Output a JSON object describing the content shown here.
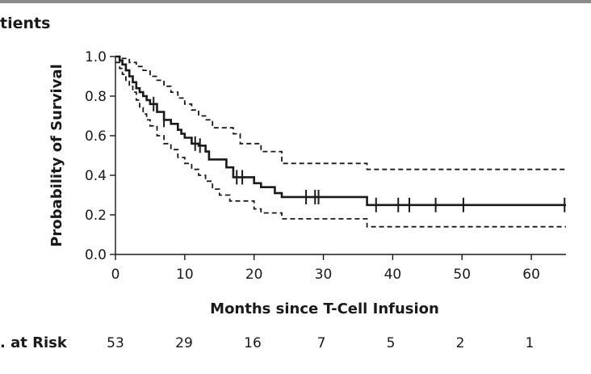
{
  "panel_label": "tients",
  "chart_data": {
    "type": "line",
    "title": "",
    "xlabel": "Months since T-Cell Infusion",
    "ylabel": "Probability of Survival",
    "xlim": [
      0,
      65
    ],
    "ylim": [
      0,
      1.0
    ],
    "xticks": [
      0,
      10,
      20,
      30,
      40,
      50,
      60
    ],
    "yticks": [
      0.0,
      0.2,
      0.4,
      0.6,
      0.8,
      1.0
    ],
    "ytick_labels": [
      "0.0",
      "0.2",
      "0.4",
      "0.6",
      "0.8",
      "1.0"
    ],
    "grid": false,
    "series": [
      {
        "style": "solid-step",
        "points": [
          [
            0,
            1.0
          ],
          [
            0.6,
            0.98
          ],
          [
            1,
            0.96
          ],
          [
            1.5,
            0.93
          ],
          [
            2,
            0.9
          ],
          [
            2.5,
            0.87
          ],
          [
            3,
            0.84
          ],
          [
            3.5,
            0.82
          ],
          [
            4,
            0.8
          ],
          [
            4.5,
            0.78
          ],
          [
            5,
            0.76
          ],
          [
            6,
            0.72
          ],
          [
            7,
            0.68
          ],
          [
            8,
            0.66
          ],
          [
            9,
            0.63
          ],
          [
            9.5,
            0.61
          ],
          [
            10,
            0.59
          ],
          [
            11,
            0.56
          ],
          [
            12,
            0.55
          ],
          [
            13,
            0.52
          ],
          [
            13.5,
            0.48
          ],
          [
            16,
            0.44
          ],
          [
            17,
            0.39
          ],
          [
            20,
            0.36
          ],
          [
            21,
            0.34
          ],
          [
            23,
            0.31
          ],
          [
            24,
            0.29
          ],
          [
            36.3,
            0.25
          ],
          [
            65,
            0.25
          ]
        ],
        "censor_x": [
          5.5,
          7,
          11.5,
          12.2,
          17.5,
          18.3,
          27.5,
          28.8,
          29.3,
          37.6,
          40.8,
          42.4,
          46.2,
          50.2,
          64.8
        ]
      },
      {
        "style": "dashed-step",
        "points": [
          [
            0,
            1.0
          ],
          [
            1,
            0.99
          ],
          [
            2,
            0.97
          ],
          [
            3,
            0.95
          ],
          [
            4,
            0.93
          ],
          [
            5,
            0.9
          ],
          [
            6,
            0.88
          ],
          [
            7,
            0.85
          ],
          [
            8,
            0.82
          ],
          [
            9,
            0.79
          ],
          [
            10,
            0.76
          ],
          [
            11,
            0.73
          ],
          [
            12,
            0.7
          ],
          [
            13,
            0.68
          ],
          [
            14,
            0.64
          ],
          [
            17,
            0.61
          ],
          [
            18,
            0.56
          ],
          [
            21,
            0.52
          ],
          [
            24,
            0.46
          ],
          [
            36.3,
            0.43
          ],
          [
            65,
            0.43
          ]
        ]
      },
      {
        "style": "dashed-step",
        "points": [
          [
            0,
            0.97
          ],
          [
            0.6,
            0.94
          ],
          [
            1,
            0.91
          ],
          [
            1.5,
            0.88
          ],
          [
            2,
            0.85
          ],
          [
            2.5,
            0.82
          ],
          [
            3,
            0.78
          ],
          [
            3.5,
            0.74
          ],
          [
            4,
            0.71
          ],
          [
            4.5,
            0.68
          ],
          [
            5,
            0.65
          ],
          [
            6,
            0.6
          ],
          [
            7,
            0.56
          ],
          [
            8,
            0.53
          ],
          [
            9,
            0.49
          ],
          [
            10,
            0.46
          ],
          [
            11,
            0.43
          ],
          [
            12,
            0.4
          ],
          [
            13,
            0.37
          ],
          [
            14,
            0.33
          ],
          [
            15,
            0.3
          ],
          [
            16.5,
            0.27
          ],
          [
            20,
            0.23
          ],
          [
            21,
            0.21
          ],
          [
            24,
            0.18
          ],
          [
            36.3,
            0.14
          ],
          [
            65,
            0.14
          ]
        ]
      }
    ]
  },
  "risk_table": {
    "label": ". at Risk",
    "values": [
      "53",
      "29",
      "16",
      "7",
      "5",
      "2",
      "1"
    ]
  }
}
